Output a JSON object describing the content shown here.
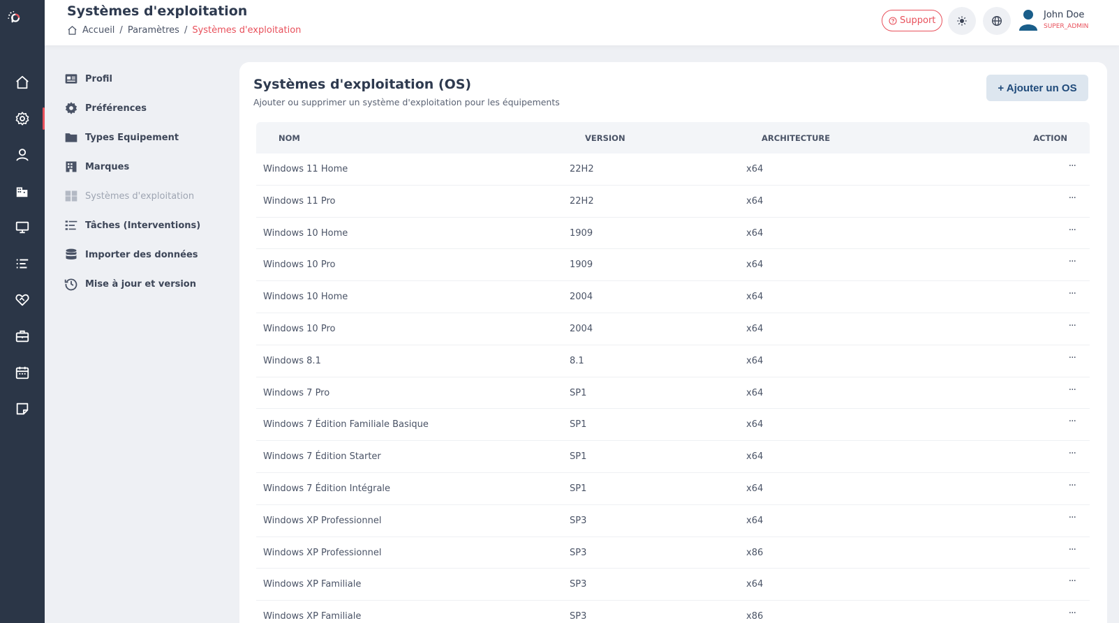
{
  "header": {
    "title": "Systèmes d'exploitation",
    "breadcrumb": [
      "Accueil",
      "Paramètres",
      "Systèmes d'exploitation"
    ],
    "support_label": "Support",
    "user": {
      "name": "John Doe",
      "role": "SUPER_ADMIN"
    }
  },
  "rail": {
    "items": [
      "home-icon",
      "settings-icon",
      "user-icon",
      "building-icon",
      "monitor-icon",
      "list-icon",
      "heart-handshake-icon",
      "briefcase-icon",
      "calendar-icon",
      "note-icon"
    ],
    "active": "settings-icon"
  },
  "settings_menu": {
    "items": [
      {
        "label": "Profil",
        "icon": "id-card-icon"
      },
      {
        "label": "Préférences",
        "icon": "gear-icon"
      },
      {
        "label": "Types Equipement",
        "icon": "folder-icon"
      },
      {
        "label": "Marques",
        "icon": "building-icon"
      },
      {
        "label": "Systèmes d'exploitation",
        "icon": "windows-icon"
      },
      {
        "label": "Tâches (Interventions)",
        "icon": "task-list-icon"
      },
      {
        "label": "Importer des données",
        "icon": "database-icon"
      },
      {
        "label": "Mise à jour et version",
        "icon": "history-icon"
      }
    ],
    "active_index": 4
  },
  "main": {
    "title": "Systèmes d'exploitation (OS)",
    "subtitle": "Ajouter ou supprimer un système d'exploitation pour les équipements",
    "add_button": "+ Ajouter un OS",
    "columns": [
      "NOM",
      "VERSION",
      "ARCHITECTURE",
      "ACTION"
    ],
    "action_label": "···",
    "rows": [
      {
        "name": "Windows 11 Home",
        "version": "22H2",
        "arch": "x64"
      },
      {
        "name": "Windows 11 Pro",
        "version": "22H2",
        "arch": "x64"
      },
      {
        "name": "Windows 10 Home",
        "version": "1909",
        "arch": "x64"
      },
      {
        "name": "Windows 10 Pro",
        "version": "1909",
        "arch": "x64"
      },
      {
        "name": "Windows 10 Home",
        "version": "2004",
        "arch": "x64"
      },
      {
        "name": "Windows 10 Pro",
        "version": "2004",
        "arch": "x64"
      },
      {
        "name": "Windows 8.1",
        "version": "8.1",
        "arch": "x64"
      },
      {
        "name": "Windows 7 Pro",
        "version": "SP1",
        "arch": "x64"
      },
      {
        "name": "Windows 7 Édition Familiale Basique",
        "version": "SP1",
        "arch": "x64"
      },
      {
        "name": "Windows 7 Édition Starter",
        "version": "SP1",
        "arch": "x64"
      },
      {
        "name": "Windows 7 Édition Intégrale",
        "version": "SP1",
        "arch": "x64"
      },
      {
        "name": "Windows XP Professionnel",
        "version": "SP3",
        "arch": "x64"
      },
      {
        "name": "Windows XP Professionnel",
        "version": "SP3",
        "arch": "x86"
      },
      {
        "name": "Windows XP Familiale",
        "version": "SP3",
        "arch": "x64"
      },
      {
        "name": "Windows XP Familiale",
        "version": "SP3",
        "arch": "x86"
      }
    ]
  },
  "colors": {
    "accent": "#e8505b",
    "rail": "#2b3647",
    "button_bg": "#dde6ef",
    "button_text": "#1f4a7a"
  }
}
